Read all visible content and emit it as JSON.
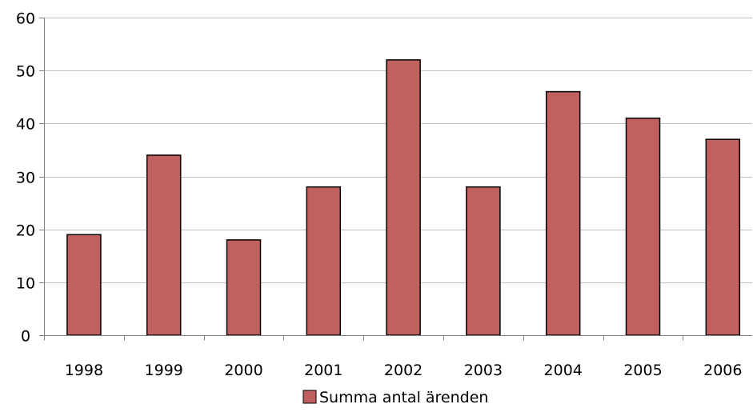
{
  "chart_data": {
    "type": "bar",
    "categories": [
      "1998",
      "1999",
      "2000",
      "2001",
      "2002",
      "2003",
      "2004",
      "2005",
      "2006"
    ],
    "series": [
      {
        "name": "Summa antal ärenden",
        "values": [
          19,
          34,
          18,
          28,
          52,
          28,
          46,
          41,
          37
        ],
        "color": "#c0605f"
      }
    ],
    "ylim": [
      0,
      60
    ],
    "yticks": [
      0,
      10,
      20,
      30,
      40,
      50,
      60
    ],
    "title": "",
    "xlabel": "",
    "ylabel": "",
    "grid": true,
    "legend_position": "bottom-center"
  }
}
